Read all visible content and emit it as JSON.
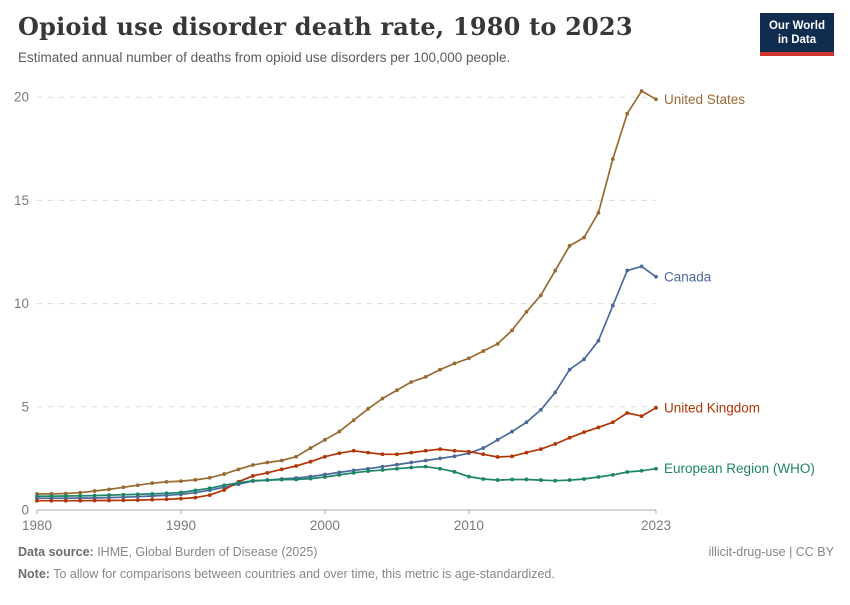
{
  "header": {
    "title": "Opioid use disorder death rate, 1980 to 2023",
    "subtitle": "Estimated annual number of deaths from opioid use disorders per 100,000 people.",
    "logo": {
      "line1": "Our World",
      "line2": "in Data",
      "bg_color": "#102d50",
      "accent_color": "#ce342b"
    }
  },
  "footer": {
    "source_label": "Data source:",
    "source_text": " IHME, Global Burden of Disease (2025)",
    "note_label": "Note:",
    "note_text": " To allow for comparisons between countries and over time, this metric is age-standardized.",
    "license": "illicit-drug-use | CC BY"
  },
  "chart_data": {
    "type": "line",
    "title": "Opioid use disorder death rate, 1980 to 2023",
    "subtitle": "Estimated annual number of deaths from opioid use disorders per 100,000 people.",
    "xlabel": "",
    "ylabel": "",
    "xlim": [
      1980,
      2023
    ],
    "ylim": [
      0,
      20.5
    ],
    "xticks": [
      1980,
      1990,
      2000,
      2010,
      2023
    ],
    "yticks": [
      0,
      5,
      10,
      15,
      20
    ],
    "grid": "horizontal-dashed",
    "legend_position": "end-of-line labels, right side",
    "point_markers": true,
    "axis_color": "#a8a8a8",
    "grid_color": "#dadada",
    "tick_label_color": "#7a7a7a",
    "x": [
      1980,
      1981,
      1982,
      1983,
      1984,
      1985,
      1986,
      1987,
      1988,
      1989,
      1990,
      1991,
      1992,
      1993,
      1994,
      1995,
      1996,
      1997,
      1998,
      1999,
      2000,
      2001,
      2002,
      2003,
      2004,
      2005,
      2006,
      2007,
      2008,
      2009,
      2010,
      2011,
      2012,
      2013,
      2014,
      2015,
      2016,
      2017,
      2018,
      2019,
      2020,
      2021,
      2022,
      2023
    ],
    "series": [
      {
        "name": "United States",
        "color": "#9a6a33",
        "values": [
          0.78,
          0.78,
          0.8,
          0.84,
          0.92,
          1.0,
          1.1,
          1.2,
          1.3,
          1.36,
          1.4,
          1.46,
          1.56,
          1.74,
          1.97,
          2.18,
          2.3,
          2.4,
          2.58,
          3.0,
          3.4,
          3.8,
          4.35,
          4.9,
          5.4,
          5.8,
          6.2,
          6.45,
          6.8,
          7.1,
          7.35,
          7.7,
          8.05,
          8.7,
          9.6,
          10.4,
          11.6,
          12.8,
          13.2,
          14.4,
          17.0,
          19.2,
          20.3,
          19.9
        ]
      },
      {
        "name": "Canada",
        "color": "#4c6a9c",
        "values": [
          0.57,
          0.57,
          0.57,
          0.58,
          0.58,
          0.6,
          0.62,
          0.65,
          0.68,
          0.71,
          0.76,
          0.84,
          0.96,
          1.1,
          1.25,
          1.4,
          1.45,
          1.5,
          1.55,
          1.62,
          1.72,
          1.82,
          1.92,
          2.0,
          2.1,
          2.2,
          2.3,
          2.4,
          2.5,
          2.6,
          2.75,
          3.0,
          3.4,
          3.8,
          4.25,
          4.85,
          5.7,
          6.8,
          7.3,
          8.2,
          9.9,
          11.6,
          11.8,
          11.3
        ]
      },
      {
        "name": "United Kingdom",
        "color": "#b13507",
        "values": [
          0.45,
          0.45,
          0.45,
          0.45,
          0.46,
          0.46,
          0.47,
          0.48,
          0.5,
          0.52,
          0.55,
          0.6,
          0.72,
          0.97,
          1.37,
          1.65,
          1.8,
          1.97,
          2.13,
          2.34,
          2.58,
          2.75,
          2.87,
          2.78,
          2.7,
          2.7,
          2.78,
          2.87,
          2.95,
          2.87,
          2.83,
          2.7,
          2.57,
          2.6,
          2.78,
          2.95,
          3.2,
          3.5,
          3.77,
          4.0,
          4.25,
          4.7,
          4.55,
          4.95
        ]
      },
      {
        "name": "European Region (WHO)",
        "color": "#1d8568",
        "values": [
          0.67,
          0.67,
          0.68,
          0.69,
          0.7,
          0.72,
          0.74,
          0.76,
          0.78,
          0.81,
          0.85,
          0.95,
          1.05,
          1.2,
          1.32,
          1.42,
          1.45,
          1.47,
          1.48,
          1.52,
          1.6,
          1.7,
          1.8,
          1.88,
          1.94,
          2.0,
          2.06,
          2.1,
          2.0,
          1.85,
          1.62,
          1.5,
          1.45,
          1.48,
          1.48,
          1.45,
          1.42,
          1.45,
          1.5,
          1.6,
          1.7,
          1.84,
          1.9,
          2.0
        ]
      }
    ]
  }
}
